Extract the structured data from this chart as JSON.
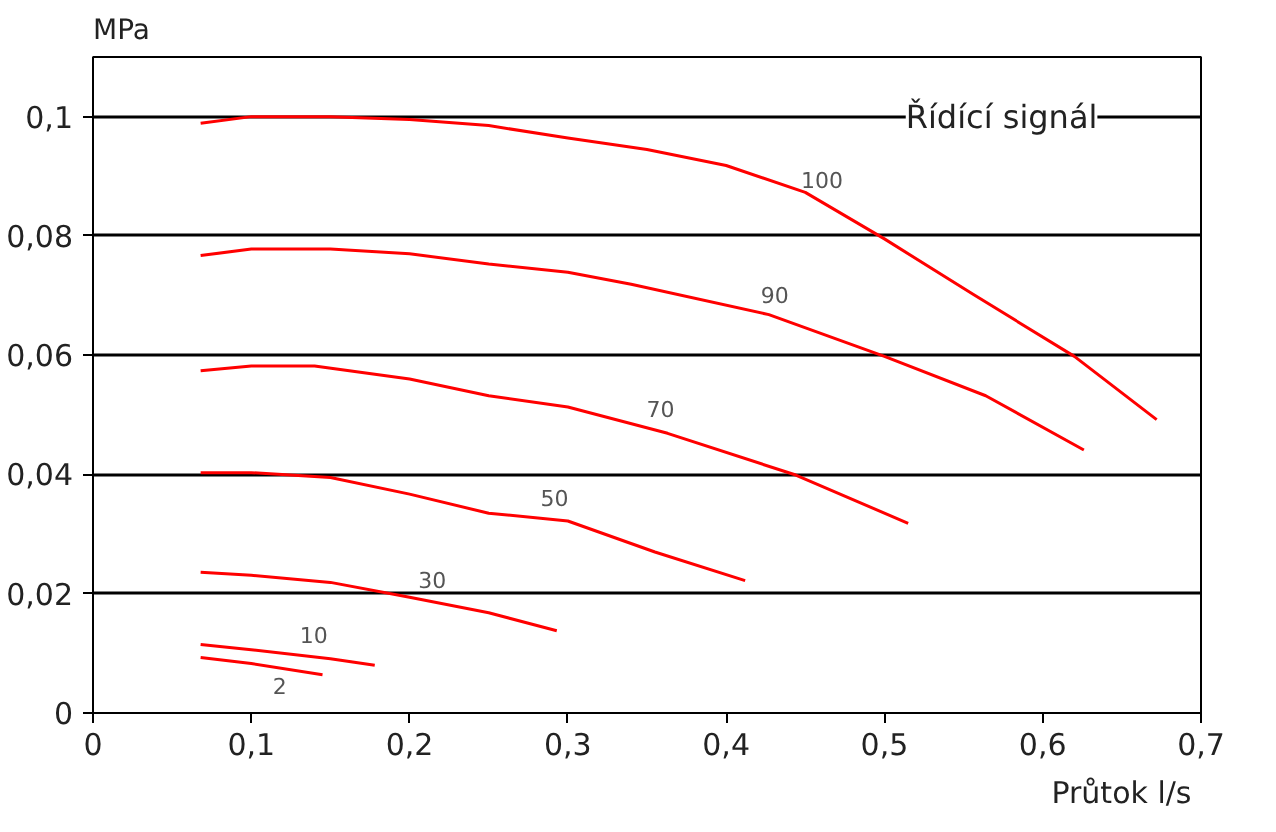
{
  "chart_data": {
    "type": "line",
    "xlabel": "Průtok  l/s",
    "ylabel": "MPa",
    "xlim": [
      0,
      0.7
    ],
    "ylim": [
      0,
      0.11
    ],
    "xticks": [
      0,
      {
        "value": 0.1,
        "label": "0,1"
      },
      {
        "value": 0.2,
        "label": "0,2"
      },
      {
        "value": 0.3,
        "label": "0,3"
      },
      {
        "value": 0.4,
        "label": "0,4"
      },
      {
        "value": 0.5,
        "label": "0,5"
      },
      {
        "value": 0.6,
        "label": "0,6"
      },
      {
        "value": 0.7,
        "label": "0,7"
      }
    ],
    "yticks": [
      0,
      {
        "value": 0.02,
        "label": "0,02"
      },
      {
        "value": 0.04,
        "label": "0,04"
      },
      {
        "value": 0.06,
        "label": "0,06"
      },
      {
        "value": 0.08,
        "label": "0,08"
      },
      {
        "value": 0.1,
        "label": "0,1"
      }
    ],
    "grid": "y",
    "marker": "none",
    "line_style": "solid",
    "series": [
      {
        "name": "100",
        "color": "#ff0000",
        "x": [
          0.068,
          0.1,
          0.15,
          0.2,
          0.25,
          0.3,
          0.35,
          0.4,
          0.45,
          0.5,
          0.556,
          0.62,
          0.672
        ],
        "values": [
          0.0989,
          0.1,
          0.1,
          0.0995,
          0.0985,
          0.0964,
          0.0945,
          0.0918,
          0.0873,
          0.0795,
          0.0702,
          0.0598,
          0.0492
        ]
      },
      {
        "name": "90",
        "color": "#ff0000",
        "x": [
          0.068,
          0.1,
          0.15,
          0.2,
          0.25,
          0.3,
          0.34,
          0.427,
          0.5,
          0.564,
          0.626
        ],
        "values": [
          0.0767,
          0.0778,
          0.0778,
          0.077,
          0.0753,
          0.0739,
          0.0719,
          0.0668,
          0.0598,
          0.0532,
          0.0441
        ]
      },
      {
        "name": "70",
        "color": "#ff0000",
        "x": [
          0.068,
          0.1,
          0.14,
          0.2,
          0.25,
          0.3,
          0.363,
          0.444,
          0.515
        ],
        "values": [
          0.0574,
          0.0582,
          0.0582,
          0.056,
          0.0532,
          0.0513,
          0.0469,
          0.0399,
          0.0318
        ]
      },
      {
        "name": "50",
        "color": "#ff0000",
        "x": [
          0.068,
          0.1,
          0.15,
          0.2,
          0.25,
          0.3,
          0.355,
          0.412
        ],
        "values": [
          0.0403,
          0.0403,
          0.0395,
          0.0367,
          0.0335,
          0.0322,
          0.027,
          0.0222
        ]
      },
      {
        "name": "30",
        "color": "#ff0000",
        "x": [
          0.068,
          0.1,
          0.15,
          0.2,
          0.25,
          0.293
        ],
        "values": [
          0.0236,
          0.0231,
          0.0219,
          0.0194,
          0.0168,
          0.0138
        ]
      },
      {
        "name": "10",
        "color": "#ff0000",
        "x": [
          0.068,
          0.1,
          0.15,
          0.178
        ],
        "values": [
          0.0115,
          0.0106,
          0.0091,
          0.008
        ]
      },
      {
        "name": "2",
        "color": "#ff0000",
        "x": [
          0.068,
          0.1,
          0.145
        ],
        "values": [
          0.0093,
          0.0083,
          0.0064
        ]
      }
    ],
    "annotations": [
      "Řídící signál"
    ]
  }
}
